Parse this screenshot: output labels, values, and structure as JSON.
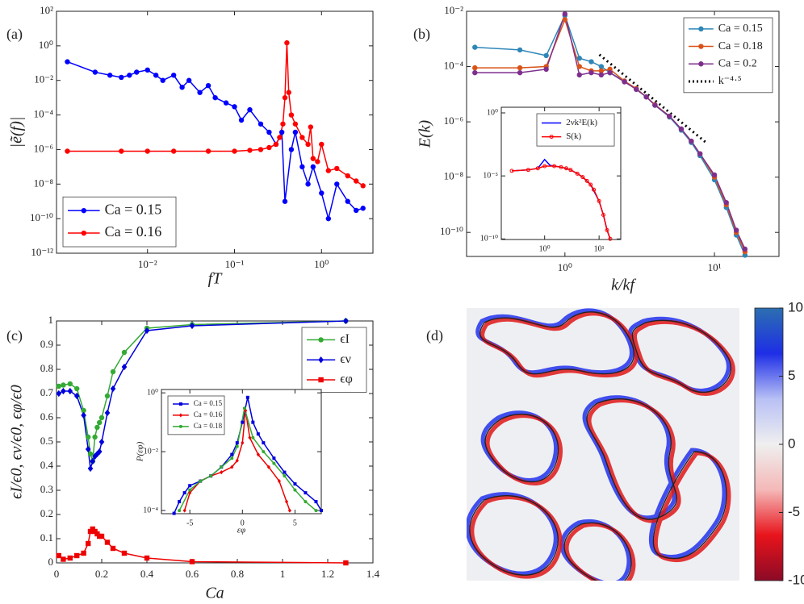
{
  "chart_data": [
    {
      "type": "line",
      "label": "(a)",
      "xlabel": "fT",
      "ylabel": "|ẽ(f)|",
      "xlog": true,
      "ylog": true,
      "xlim": [
        0.0009,
        3.9
      ],
      "ylim": [
        1e-12,
        100
      ],
      "xticks": [
        {
          "value": 0.01,
          "label": "10⁻²"
        },
        {
          "value": 0.1,
          "label": "10⁻¹"
        },
        {
          "value": 1,
          "label": "10⁰"
        }
      ],
      "yticks": [
        {
          "value": 100,
          "label": "10²"
        },
        {
          "value": 1,
          "label": "10⁰"
        },
        {
          "value": 0.01,
          "label": "10⁻²"
        },
        {
          "value": 0.0001,
          "label": "10⁻⁴"
        },
        {
          "value": 1e-06,
          "label": "10⁻⁶"
        },
        {
          "value": 1e-08,
          "label": "10⁻⁸"
        },
        {
          "value": 1e-10,
          "label": "10⁻¹⁰"
        },
        {
          "value": 1e-12,
          "label": "10⁻¹²"
        }
      ],
      "legend": "lower left",
      "series": [
        {
          "name": "Ca = 0.15",
          "color": "#0000ff",
          "marker": "circle",
          "x": [
            0.0012,
            0.0025,
            0.0037,
            0.005,
            0.0062,
            0.0075,
            0.01,
            0.0125,
            0.015,
            0.02,
            0.025,
            0.03,
            0.04,
            0.05,
            0.06,
            0.08,
            0.1,
            0.12,
            0.15,
            0.2,
            0.25,
            0.3,
            0.35,
            0.38,
            0.45,
            0.5,
            0.6,
            0.7,
            0.8,
            1,
            1.2,
            1.5,
            2,
            2.5,
            3
          ],
          "values": [
            0.12,
            0.03,
            0.02,
            0.015,
            0.02,
            0.03,
            0.04,
            0.02,
            0.01,
            0.02,
            0.004,
            0.01,
            0.002,
            0.005,
            0.001,
            0.0005,
            0.0003,
            5e-05,
            0.0002,
            3e-05,
            1e-05,
            2e-06,
            1e-05,
            1e-09,
            1e-06,
            1e-05,
            1e-07,
            1e-08,
            1e-07,
            3e-09,
            1e-10,
            1e-08,
            1e-09,
            3e-10,
            4e-10
          ]
        },
        {
          "name": "Ca = 0.16",
          "color": "#ff0000",
          "marker": "circle",
          "x": [
            0.0012,
            0.005,
            0.01,
            0.02,
            0.05,
            0.1,
            0.15,
            0.2,
            0.25,
            0.3,
            0.33,
            0.36,
            0.38,
            0.4,
            0.42,
            0.45,
            0.5,
            0.6,
            0.7,
            0.75,
            0.8,
            0.9,
            1,
            1.2,
            1.5,
            2,
            2.5,
            3
          ],
          "values": [
            8e-07,
            8e-07,
            8e-07,
            8e-07,
            8e-07,
            8e-07,
            9e-07,
            1e-06,
            1.3e-06,
            2e-06,
            5e-06,
            3e-05,
            0.001,
            1.5,
            0.002,
            0.0001,
            3e-05,
            5e-06,
            2e-06,
            2e-05,
            3e-07,
            2e-07,
            2e-06,
            6e-08,
            8e-08,
            3e-08,
            1.5e-08,
            8e-09
          ]
        }
      ]
    },
    {
      "type": "line",
      "label": "(b)",
      "xlabel": "k/kf",
      "ylabel": "E(k)",
      "xlog": true,
      "ylog": true,
      "xlim": [
        0.22,
        27
      ],
      "ylim": [
        1.35e-11,
        0.01
      ],
      "xticks": [
        {
          "value": 1,
          "label": "10⁰"
        },
        {
          "value": 10,
          "label": "10¹"
        }
      ],
      "yticks": [
        {
          "value": 0.01,
          "label": "10⁻²"
        },
        {
          "value": 0.0001,
          "label": "10⁻⁴"
        },
        {
          "value": 1e-06,
          "label": "10⁻⁶"
        },
        {
          "value": 1e-08,
          "label": "10⁻⁸"
        },
        {
          "value": 1e-10,
          "label": "10⁻¹⁰"
        }
      ],
      "legend": "upper right",
      "series": [
        {
          "name": "Ca = 0.15",
          "color": "#2e86b8",
          "marker": "circle",
          "x": [
            0.25,
            0.5,
            0.75,
            1,
            1.25,
            1.5,
            1.75,
            2,
            2.5,
            3,
            3.5,
            4,
            5,
            6,
            7,
            8,
            10,
            12,
            14,
            16
          ],
          "values": [
            0.0005,
            0.0004,
            0.00025,
            0.007,
            0.0002,
            0.00015,
            0.0001,
            6e-05,
            3e-05,
            1.5e-05,
            8e-06,
            4e-06,
            1.5e-06,
            5e-07,
            1.8e-07,
            6e-08,
            8e-09,
            8e-10,
            8e-11,
            1.5e-11
          ]
        },
        {
          "name": "Ca = 0.18",
          "color": "#d95319",
          "marker": "circle",
          "x": [
            0.25,
            0.5,
            0.75,
            1,
            1.25,
            1.5,
            1.75,
            2,
            2.5,
            3,
            3.5,
            4,
            5,
            6,
            7,
            8,
            10,
            12,
            14,
            16
          ],
          "values": [
            9e-05,
            9e-05,
            0.0001,
            0.005,
            0.0001,
            7e-05,
            7e-05,
            8e-05,
            3e-05,
            1.6e-05,
            8e-06,
            4.2e-06,
            1.6e-06,
            5.5e-07,
            2e-07,
            7e-08,
            1e-08,
            1e-09,
            1e-10,
            2e-11
          ]
        },
        {
          "name": "Ca = 0.2",
          "color": "#7e2f8e",
          "marker": "circle",
          "x": [
            0.25,
            0.5,
            0.75,
            1,
            1.25,
            1.5,
            1.75,
            2,
            2.5,
            3,
            3.5,
            4,
            5,
            6,
            7,
            8,
            10,
            12,
            14,
            16
          ],
          "values": [
            6e-05,
            6e-05,
            8e-05,
            0.008,
            5e-05,
            6e-05,
            5e-05,
            6e-05,
            2.8e-05,
            1.5e-05,
            8e-06,
            4e-06,
            1.6e-06,
            5.5e-07,
            2e-07,
            7e-08,
            1.2e-08,
            1.2e-09,
            1.2e-10,
            2.5e-11
          ]
        },
        {
          "name": "k⁻⁴·⁵",
          "color": "#000000",
          "marker": "none",
          "dash": "dotted",
          "x": [
            1.7,
            9
          ],
          "values": [
            0.00027,
            1.6e-07
          ]
        }
      ],
      "inset": {
        "xlog": true,
        "ylog": true,
        "xlim": [
          0.16,
          25
        ],
        "ylim": [
          9e-11,
          2.8
        ],
        "xticks": [
          {
            "value": 1,
            "label": "10⁰"
          },
          {
            "value": 10,
            "label": "10¹"
          }
        ],
        "yticks": [
          {
            "value": 1,
            "label": "10⁰"
          },
          {
            "value": 1e-05,
            "label": "10⁻⁵"
          },
          {
            "value": 1e-10,
            "label": "10⁻¹⁰"
          }
        ],
        "legend": "upper right",
        "series": [
          {
            "name": "2νk²E(k)",
            "color": "#0000ff",
            "marker": "none",
            "x": [
              0.25,
              0.5,
              0.75,
              1,
              1.25,
              1.5,
              2,
              3,
              4,
              5,
              7,
              10,
              12,
              14,
              16
            ],
            "values": [
              2.5e-05,
              3e-05,
              4e-05,
              0.0002,
              7e-05,
              6e-05,
              5e-05,
              3e-05,
              1.5e-05,
              8e-06,
              2e-06,
              1e-07,
              8e-09,
              5e-10,
              1e-10
            ]
          },
          {
            "name": "S(k)",
            "color": "#ff0000",
            "marker": "circle-open",
            "x": [
              0.25,
              0.5,
              0.75,
              1,
              1.5,
              2,
              2.5,
              3,
              4,
              5,
              6,
              7,
              8,
              10,
              12,
              14,
              16
            ],
            "values": [
              2.5e-05,
              3e-05,
              4e-05,
              6e-05,
              6e-05,
              5e-05,
              4e-05,
              3e-05,
              1.5e-05,
              8e-06,
              4e-06,
              2e-06,
              8e-07,
              1e-07,
              8e-09,
              5e-10,
              1e-10
            ]
          }
        ]
      }
    },
    {
      "type": "line",
      "label": "(c)",
      "xlabel": "Ca",
      "ylabel": "ϵI/ϵ0, ϵν/ϵ0, ϵφ/ϵ0",
      "xlog": false,
      "ylog": false,
      "xlim": [
        0,
        1.4
      ],
      "ylim": [
        0,
        1
      ],
      "xticks": [
        0,
        0.2,
        0.4,
        0.6,
        0.8,
        1,
        1.2,
        1.4
      ],
      "yticks": [
        0,
        0.1,
        0.2,
        0.3,
        0.4,
        0.5,
        0.6,
        0.7,
        0.8,
        0.9,
        1
      ],
      "legend": "upper right",
      "series": [
        {
          "name": "ϵI",
          "color": "#33aa33",
          "marker": "circle",
          "x": [
            0.01,
            0.03,
            0.06,
            0.09,
            0.12,
            0.14,
            0.15,
            0.16,
            0.17,
            0.18,
            0.19,
            0.2,
            0.225,
            0.25,
            0.3,
            0.4,
            0.6,
            1.28
          ],
          "values": [
            0.73,
            0.735,
            0.74,
            0.72,
            0.63,
            0.52,
            0.45,
            0.42,
            0.52,
            0.56,
            0.58,
            0.6,
            0.69,
            0.79,
            0.87,
            0.97,
            0.985,
            1
          ]
        },
        {
          "name": "ϵν",
          "color": "#0000dd",
          "marker": "diamond",
          "x": [
            0.01,
            0.03,
            0.06,
            0.09,
            0.12,
            0.14,
            0.15,
            0.16,
            0.17,
            0.18,
            0.19,
            0.2,
            0.225,
            0.25,
            0.3,
            0.4,
            0.6,
            1.28
          ],
          "values": [
            0.7,
            0.71,
            0.71,
            0.69,
            0.61,
            0.47,
            0.39,
            0.42,
            0.44,
            0.45,
            0.46,
            0.5,
            0.62,
            0.72,
            0.81,
            0.96,
            0.98,
            1
          ]
        },
        {
          "name": "ϵφ",
          "color": "#ee0000",
          "marker": "square",
          "x": [
            0.01,
            0.03,
            0.06,
            0.09,
            0.12,
            0.14,
            0.15,
            0.16,
            0.17,
            0.18,
            0.19,
            0.2,
            0.225,
            0.25,
            0.3,
            0.4,
            0.6,
            1.28
          ],
          "values": [
            0.03,
            0.015,
            0.02,
            0.03,
            0.04,
            0.08,
            0.13,
            0.14,
            0.13,
            0.12,
            0.11,
            0.11,
            0.085,
            0.06,
            0.04,
            0.02,
            0.005,
            0
          ]
        }
      ],
      "inset": {
        "xlabel": "εφ",
        "ylabel": "P(εφ)",
        "xlog": false,
        "ylog": true,
        "xlim": [
          -7.7,
          7.5
        ],
        "ylim": [
          7.8e-05,
          1.3
        ],
        "xticks": [
          -5,
          0,
          5
        ],
        "yticks": [
          {
            "value": 1,
            "label": "10⁰"
          },
          {
            "value": 0.01,
            "label": "10⁻²"
          },
          {
            "value": 0.0001,
            "label": "10⁻⁴"
          }
        ],
        "legend": "upper left",
        "series": [
          {
            "name": "Ca = 0.15",
            "color": "#0000dd",
            "marker": "square",
            "x": [
              -6.5,
              -6,
              -5.5,
              -5,
              -4,
              -3,
              -2,
              -1,
              -0.5,
              0,
              0.5,
              1,
              1.5,
              2,
              3,
              4,
              5,
              6,
              7,
              7.5
            ],
            "values": [
              8e-05,
              0.0002,
              0.0004,
              0.0007,
              0.001,
              0.0015,
              0.003,
              0.008,
              0.02,
              0.1,
              0.7,
              0.1,
              0.04,
              0.02,
              0.006,
              0.002,
              0.0008,
              0.0004,
              0.0002,
              0.0001
            ]
          },
          {
            "name": "Ca = 0.16",
            "color": "#ee0000",
            "marker": "diamond",
            "x": [
              -5.5,
              -5,
              -4,
              -3,
              -2,
              -1,
              -0.5,
              0,
              0.3,
              0.7,
              1.5,
              2.5,
              3.5,
              4.2,
              4.5
            ],
            "values": [
              0.0001,
              0.0004,
              0.001,
              0.0015,
              0.002,
              0.003,
              0.005,
              0.02,
              0.25,
              0.03,
              0.008,
              0.003,
              0.001,
              0.0002,
              0.0001
            ]
          },
          {
            "name": "Ca = 0.18",
            "color": "#33aa33",
            "marker": "circle",
            "x": [
              -6,
              -5,
              -4,
              -3,
              -2,
              -1,
              -0.5,
              0.2,
              1,
              2,
              3,
              4,
              5,
              6,
              7
            ],
            "values": [
              0.0001,
              0.0005,
              0.001,
              0.0015,
              0.003,
              0.006,
              0.015,
              0.3,
              0.03,
              0.01,
              0.004,
              0.0015,
              0.0005,
              0.0002,
              0.0001
            ]
          }
        ]
      }
    },
    {
      "type": "image",
      "label": "(d)",
      "colorbar": {
        "clim": [
          -10,
          10
        ],
        "ticks": [
          10,
          5,
          0,
          -5,
          -10
        ],
        "colors": [
          "#8b0a26",
          "#e8141c",
          "#f5b8b8",
          "#efefef",
          "#b8c0f5",
          "#1e2ee6",
          "#2c6fb0"
        ]
      }
    }
  ]
}
